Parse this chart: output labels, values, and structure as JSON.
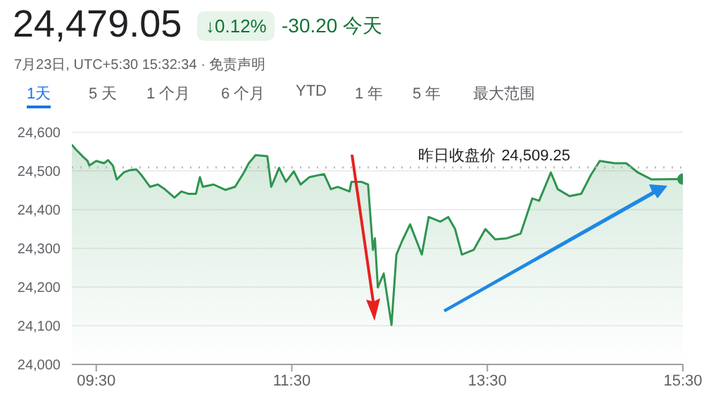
{
  "chart_data": {
    "type": "area",
    "title": "24,479.05",
    "subtitle": "7月23日, UTC+5:30 15:32:34 · 免责声明",
    "annotations": [
      "↓0.12%",
      "-30.20 今天",
      "1天",
      "5 天",
      "1 个月",
      "6 个月",
      "YTD",
      "1 年",
      "5 年",
      "最大范围"
    ],
    "x": [
      9.25,
      9.29,
      9.36,
      9.41,
      9.43,
      9.5,
      9.58,
      9.62,
      9.67,
      9.71,
      9.78,
      9.84,
      9.91,
      9.96,
      10.05,
      10.13,
      10.2,
      10.3,
      10.37,
      10.44,
      10.52,
      10.56,
      10.59,
      10.7,
      10.82,
      10.92,
      11.01,
      11.06,
      11.13,
      11.25,
      11.29,
      11.37,
      11.44,
      11.52,
      11.59,
      11.68,
      11.83,
      11.9,
      11.97,
      12.09,
      12.11,
      12.21,
      12.28,
      12.33,
      12.35,
      12.38,
      12.44,
      12.52,
      12.57,
      12.63,
      12.71,
      12.83,
      12.9,
      13.02,
      13.1,
      13.17,
      13.24,
      13.36,
      13.48,
      13.58,
      13.7,
      13.84,
      13.96,
      14.03,
      14.15,
      14.22,
      14.34,
      14.46,
      14.56,
      14.65,
      14.8,
      14.92,
      15.04,
      15.18,
      15.5
    ],
    "series": [
      {
        "color": "#2f9450",
        "values": [
          24568,
          24556,
          24538,
          24526,
          24514,
          24526,
          24520,
          24528,
          24514,
          24478,
          24496,
          24502,
          24504,
          24490,
          24459,
          24465,
          24453,
          24431,
          24447,
          24441,
          24441,
          24484,
          24459,
          24465,
          24451,
          24459,
          24496,
          24520,
          24541,
          24538,
          24459,
          24508,
          24472,
          24499,
          24465,
          24484,
          24492,
          24453,
          24459,
          24447,
          24472,
          24472,
          24465,
          24296,
          24326,
          24199,
          24235,
          24102,
          24284,
          24320,
          24362,
          24284,
          24381,
          24369,
          24381,
          24350,
          24284,
          24296,
          24350,
          24323,
          24326,
          24338,
          24429,
          24423,
          24496,
          24453,
          24435,
          24441,
          24490,
          24526,
          24520,
          24520,
          24496,
          24478,
          24479
        ]
      }
    ],
    "xlim": [
      9.25,
      15.5
    ],
    "xticks": [
      {
        "value": 9.5,
        "label": "09:30"
      },
      {
        "value": 11.5,
        "label": "11:30"
      },
      {
        "value": 13.5,
        "label": "13:30"
      },
      {
        "value": 15.5,
        "label": "15:30"
      }
    ],
    "ylim": [
      24000,
      24600
    ],
    "yticks": [
      {
        "value": 24000,
        "label": "24,000"
      },
      {
        "value": 24100,
        "label": "24,100"
      },
      {
        "value": 24200,
        "label": "24,200"
      },
      {
        "value": 24300,
        "label": "24,300"
      },
      {
        "value": 24400,
        "label": "24,400"
      },
      {
        "value": 24500,
        "label": "24,500"
      },
      {
        "value": 24600,
        "label": "24,600"
      }
    ],
    "grid": "y",
    "ref_lines": [
      {
        "axis": "y",
        "value": 24509.25,
        "label": "昨日收盘价 24,509.25",
        "color": "#bbbbbb",
        "line_style": "dotted"
      }
    ]
  }
}
